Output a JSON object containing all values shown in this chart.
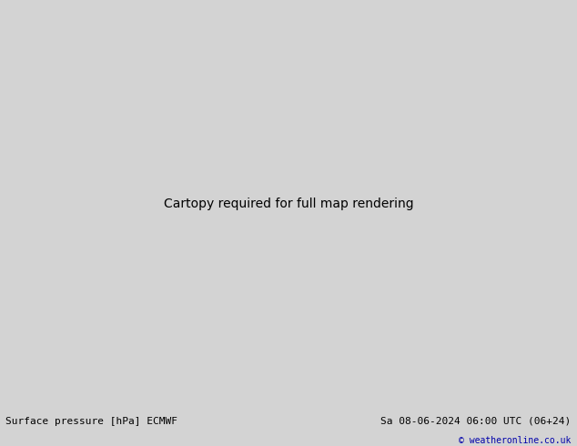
{
  "title_left": "Surface pressure [hPa] ECMWF",
  "title_right": "Sa 08-06-2024 06:00 UTC (06+24)",
  "copyright": "© weatheronline.co.uk",
  "bg_color": "#d3d3d3",
  "land_color": "#c8f0a0",
  "ocean_color": "#d3d3d3",
  "fig_width": 6.34,
  "fig_height": 4.9,
  "dpi": 100,
  "bottom_bar_color": "#f0f0f0",
  "isobar_red_color": "#cc0000",
  "isobar_blue_color": "#0000cc",
  "isobar_black_color": "#000000",
  "label_fontsize": 7,
  "title_fontsize": 8,
  "copyright_fontsize": 7,
  "copyright_color": "#0000aa"
}
